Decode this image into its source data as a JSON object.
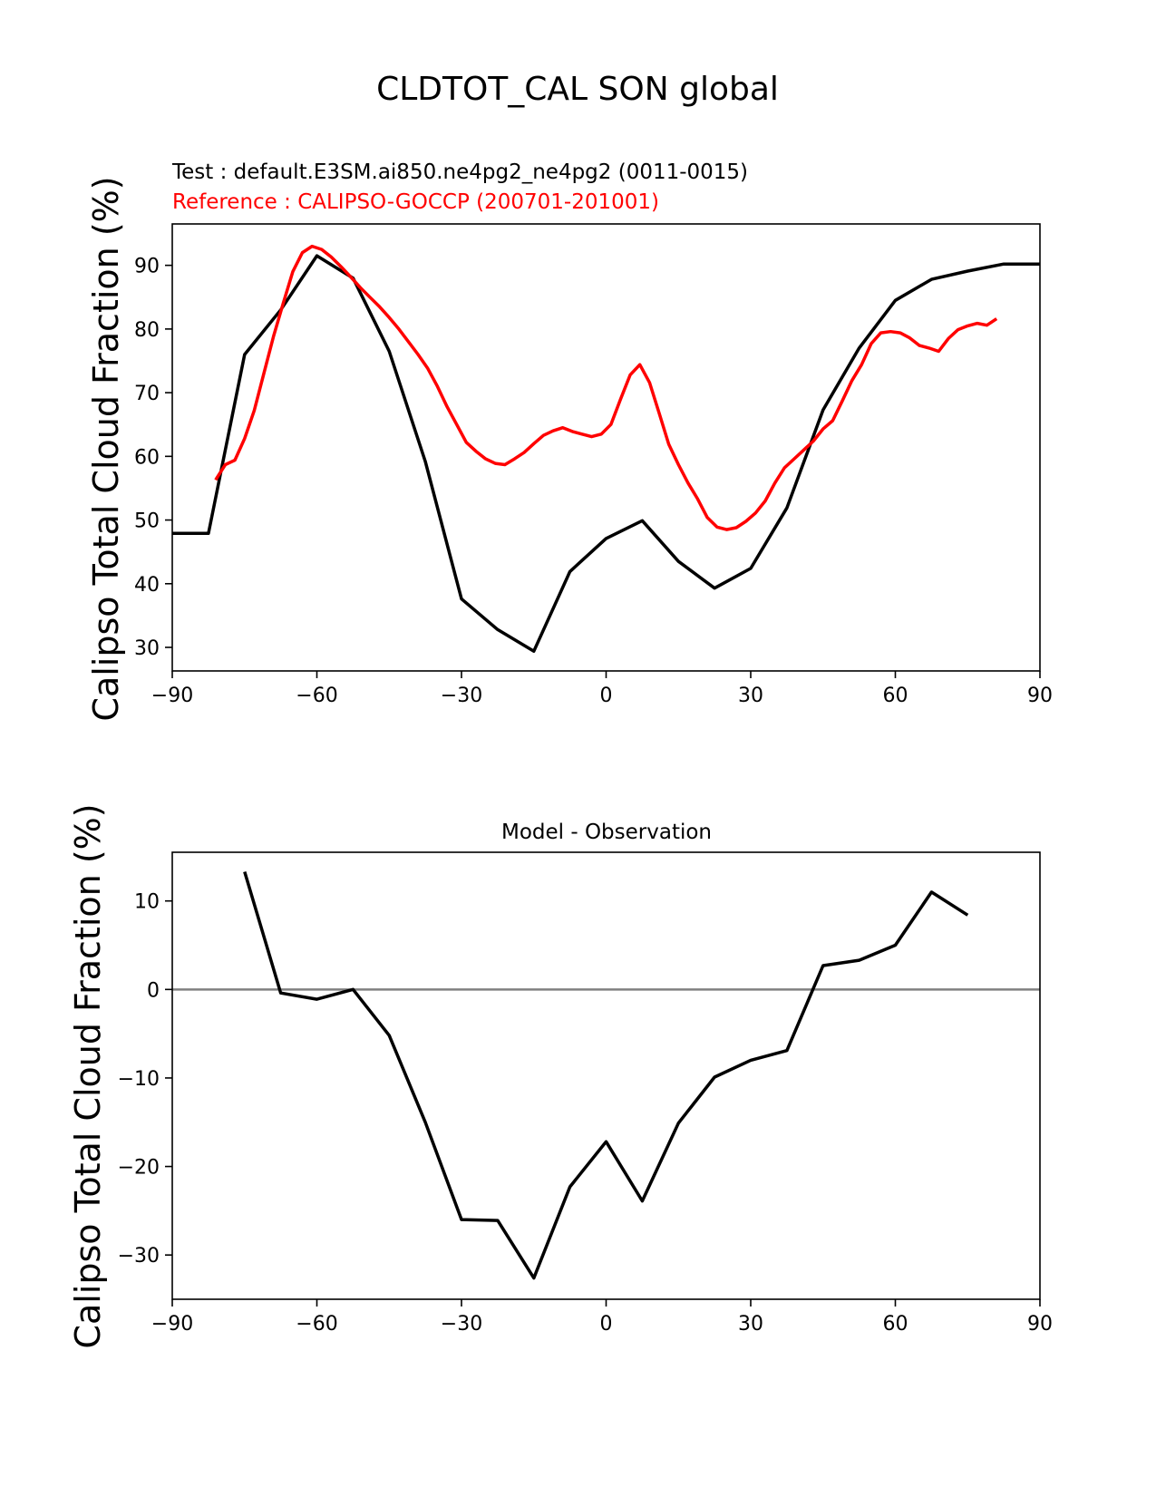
{
  "figure_title": "CLDTOT_CAL SON global",
  "chart_data": [
    {
      "type": "line",
      "title": "",
      "test_label": "Test : default.E3SM.ai850.ne4pg2_ne4pg2 (0011-0015)",
      "reference_label": "Reference : CALIPSO-GOCCP (200701-201001)",
      "xlabel": "",
      "ylabel": "Calipso Total Cloud Fraction (%)",
      "xlim": [
        -90,
        90
      ],
      "ylim": [
        26.3,
        96.5
      ],
      "xticks": [
        -90,
        -60,
        -30,
        0,
        30,
        60,
        90
      ],
      "xtick_labels": [
        "−90",
        "−60",
        "−30",
        "0",
        "30",
        "60",
        "90"
      ],
      "yticks": [
        30,
        40,
        50,
        60,
        70,
        80,
        90
      ],
      "ytick_labels": [
        "30",
        "40",
        "50",
        "60",
        "70",
        "80",
        "90"
      ],
      "grid": false,
      "series": [
        {
          "name": "Test : default.E3SM.ai850.ne4pg2_ne4pg2 (0011-0015)",
          "color": "#000000",
          "x": [
            -90,
            -82.5,
            -75,
            -67.5,
            -60,
            -52.5,
            -45,
            -37.5,
            -30,
            -22.5,
            -15,
            -7.5,
            0,
            7.5,
            15,
            22.5,
            30,
            37.5,
            45,
            52.5,
            60,
            67.5,
            75,
            82.5,
            90
          ],
          "y": [
            47.9,
            47.9,
            76.0,
            83.0,
            91.5,
            88.0,
            76.5,
            59.2,
            37.6,
            32.8,
            29.4,
            41.9,
            47.1,
            49.9,
            43.5,
            39.3,
            42.4,
            51.9,
            67.3,
            77.0,
            84.5,
            87.8,
            89.1,
            90.2,
            90.2
          ]
        },
        {
          "name": "Reference : CALIPSO-GOCCP (200701-201001)",
          "color": "#ff0000",
          "x": [
            -81,
            -79,
            -77,
            -75,
            -73,
            -71,
            -69,
            -67,
            -65,
            -63,
            -61,
            -59,
            -57,
            -55,
            -53,
            -51,
            -49,
            -47,
            -45,
            -43,
            -41,
            -39,
            -37,
            -35,
            -33,
            -31,
            -29,
            -27,
            -25,
            -23,
            -21,
            -19,
            -17,
            -15,
            -13,
            -11,
            -9,
            -7,
            -5,
            -3,
            -1,
            1,
            3,
            5,
            7,
            9,
            11,
            13,
            15,
            17,
            19,
            21,
            23,
            25,
            27,
            29,
            31,
            33,
            35,
            37,
            39,
            41,
            43,
            45,
            47,
            49,
            51,
            53,
            55,
            57,
            59,
            61,
            63,
            65,
            67,
            69,
            71,
            73,
            75,
            77,
            79,
            81
          ],
          "y": [
            56.3,
            58.7,
            59.4,
            62.8,
            67.2,
            73.0,
            78.8,
            84.0,
            89.0,
            92.0,
            93.0,
            92.5,
            91.3,
            89.8,
            88.2,
            86.5,
            85.0,
            83.5,
            81.8,
            80.0,
            78.0,
            76.0,
            73.8,
            71.0,
            67.8,
            65.0,
            62.2,
            60.8,
            59.6,
            58.9,
            58.7,
            59.6,
            60.6,
            62.0,
            63.3,
            64.0,
            64.5,
            63.9,
            63.5,
            63.1,
            63.5,
            65.0,
            69.0,
            72.8,
            74.4,
            71.6,
            66.8,
            61.9,
            58.7,
            55.8,
            53.3,
            50.4,
            48.9,
            48.5,
            48.8,
            49.8,
            51.1,
            53.0,
            55.8,
            58.2,
            59.6,
            61.0,
            62.4,
            64.3,
            65.6,
            68.7,
            71.9,
            74.4,
            77.7,
            79.4,
            79.6,
            79.4,
            78.6,
            77.4,
            77.0,
            76.5,
            78.5,
            79.9,
            80.5,
            80.9,
            80.6,
            81.6
          ]
        }
      ]
    },
    {
      "type": "line",
      "title": "Model - Observation",
      "xlabel": "",
      "ylabel": "Calipso Total Cloud Fraction (%)",
      "xlim": [
        -90,
        90
      ],
      "ylim": [
        -35.0,
        15.5
      ],
      "xticks": [
        -90,
        -60,
        -30,
        0,
        30,
        60,
        90
      ],
      "xtick_labels": [
        "−90",
        "−60",
        "−30",
        "0",
        "30",
        "60",
        "90"
      ],
      "yticks": [
        -30,
        -20,
        -10,
        0,
        10
      ],
      "ytick_labels": [
        "−30",
        "−20",
        "−10",
        "0",
        "10"
      ],
      "grid": false,
      "zero_line_color": "#808080",
      "series": [
        {
          "color": "#000000",
          "x": [
            -75,
            -67.5,
            -60,
            -52.5,
            -45,
            -37.5,
            -30,
            -22.5,
            -15,
            -7.5,
            0,
            7.5,
            15,
            22.5,
            30,
            37.5,
            45,
            52.5,
            60,
            67.5,
            75
          ],
          "y": [
            13.3,
            -0.4,
            -1.1,
            0.0,
            -5.2,
            -15.0,
            -26.0,
            -26.1,
            -32.6,
            -22.3,
            -17.2,
            -23.9,
            -15.1,
            -9.9,
            -8.0,
            -6.9,
            2.7,
            3.3,
            5.0,
            11.0,
            8.4
          ]
        }
      ]
    }
  ]
}
